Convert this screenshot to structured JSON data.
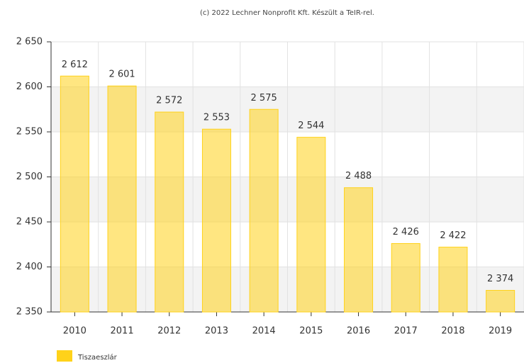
{
  "chart_data": {
    "type": "bar",
    "credit": "(c) 2022 Lechner Nonprofit Kft. Készült a TeIR-rel.",
    "categories": [
      "2010",
      "2011",
      "2012",
      "2013",
      "2014",
      "2015",
      "2016",
      "2017",
      "2018",
      "2019"
    ],
    "series": [
      {
        "name": "Tiszaeszlár",
        "color": "#ffd21a",
        "values": [
          2612,
          2601,
          2572,
          2553,
          2575,
          2544,
          2488,
          2426,
          2422,
          2374
        ],
        "value_labels": [
          "2 612",
          "2 601",
          "2 572",
          "2 553",
          "2 575",
          "2 544",
          "2 488",
          "2 426",
          "2 422",
          "2 374"
        ]
      }
    ],
    "ylim": [
      2350,
      2650
    ],
    "yticks": [
      {
        "value": 2350,
        "label": "2 350"
      },
      {
        "value": 2400,
        "label": "2 400"
      },
      {
        "value": 2450,
        "label": "2 450"
      },
      {
        "value": 2500,
        "label": "2 500"
      },
      {
        "value": 2550,
        "label": "2 550"
      },
      {
        "value": 2600,
        "label": "2 600"
      },
      {
        "value": 2650,
        "label": "2 650"
      }
    ],
    "grid": true,
    "legend": "bottom-left"
  }
}
